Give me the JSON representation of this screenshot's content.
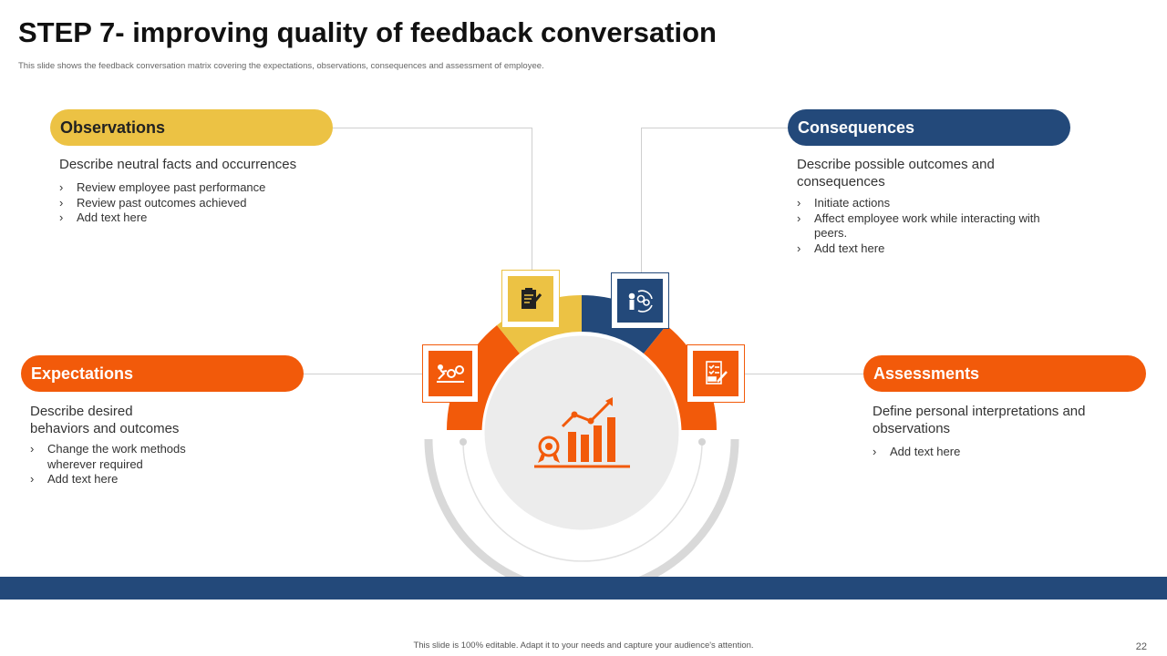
{
  "title": "STEP 7- improving quality of feedback conversation",
  "subtitle": "This slide shows the feedback conversation matrix covering the expectations, observations, consequences and assessment of employee.",
  "colors": {
    "yellow": "#ecc244",
    "navy": "#23497a",
    "orange": "#f25a0a",
    "gray": "#d9d9d9"
  },
  "sections": {
    "observations": {
      "label": "Observations",
      "desc": "Describe neutral facts and occurrences",
      "bullets": [
        "Review employee past performance",
        "Review past outcomes achieved",
        "Add text here"
      ],
      "icon": "clipboard-pen-icon"
    },
    "consequences": {
      "label": "Consequences",
      "desc": "Describe possible outcomes and consequences",
      "bullets": [
        "Initiate actions",
        "Affect employee work while interacting with peers.",
        "Add text here"
      ],
      "icon": "person-gears-cycle-icon"
    },
    "expectations": {
      "label": "Expectations",
      "desc": "Describe desired behaviors and outcomes",
      "bullets": [
        "Change the work methods wherever required",
        "Add text here"
      ],
      "icon": "person-pushing-gears-icon"
    },
    "assessments": {
      "label": "Assessments",
      "desc": "Define personal interpretations and observations",
      "bullets": [
        "Add text here"
      ],
      "icon": "checklist-pen-icon"
    }
  },
  "center_icon": "growth-chart-award-icon",
  "footer": "This slide is 100% editable. Adapt it to your needs and capture your audience's attention.",
  "page_number": "22"
}
